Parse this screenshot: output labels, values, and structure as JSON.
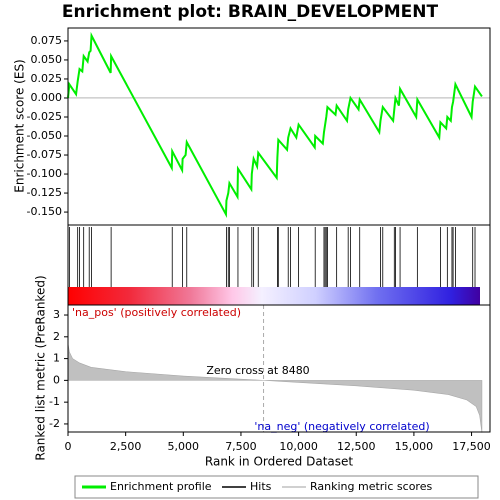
{
  "chart_data": {
    "type": "gsea",
    "title": "Enrichment plot: BRAIN_DEVELOPMENT",
    "y_label": "Enrichment score (ES)",
    "y2_label": "Ranked list metric (PreRanked)",
    "x_label": "Rank in Ordered Dataset",
    "annotations": [
      "'na_pos' (positively correlated)",
      "Zero cross at 8480",
      "'na_neg' (negatively correlated)"
    ],
    "zero_cross": 8480,
    "xlim": [
      0,
      18300
    ],
    "xticks": [
      0,
      {
        "value": 2500,
        "label": "2,500"
      },
      {
        "value": 5000,
        "label": "5,000"
      },
      {
        "value": 7500,
        "label": "7,500"
      },
      {
        "value": 10000,
        "label": "10,000"
      },
      {
        "value": 12500,
        "label": "12,500"
      },
      {
        "value": 15000,
        "label": "15,000"
      },
      {
        "value": 17500,
        "label": "17,500"
      }
    ],
    "ylim": [
      -0.167,
      0.092
    ],
    "yticks": [
      0.075,
      {
        "value": 0.05,
        "label": "0.050"
      },
      0.025,
      {
        "value": 0,
        "label": "0.000"
      },
      -0.025,
      {
        "value": -0.05,
        "label": "-0.050"
      },
      -0.075,
      {
        "value": -0.1,
        "label": "-0.100"
      },
      -0.125,
      {
        "value": -0.15,
        "label": "-0.150"
      }
    ],
    "y2lim": [
      -2.37,
      3.46
    ],
    "y2ticks": [
      3,
      2,
      1,
      0,
      -1,
      -2
    ],
    "series": [
      {
        "name": "Enrichment profile",
        "color": "#00ee00",
        "x": [
          0,
          60,
          350,
          420,
          500,
          620,
          680,
          850,
          920,
          980,
          1020,
          1850,
          1870,
          4500,
          4520,
          4950,
          4970,
          5100,
          5150,
          6850,
          6870,
          6950,
          7000,
          7350,
          7370,
          7950,
          7970,
          8050,
          8200,
          8250,
          9050,
          9080,
          9120,
          9500,
          9550,
          9650,
          9900,
          10000,
          10700,
          10720,
          11050,
          11100,
          11150,
          11200,
          11250,
          11600,
          11650,
          12100,
          12150,
          12250,
          12600,
          12650,
          13500,
          13550,
          13650,
          14100,
          14150,
          14200,
          14350,
          14400,
          15100,
          15150,
          16100,
          16150,
          16400,
          16450,
          16600,
          16650,
          16700,
          16800,
          17500,
          17550,
          17650,
          17950
        ],
        "values": [
          0,
          0.018,
          0.005,
          0.022,
          0.038,
          0.035,
          0.055,
          0.048,
          0.06,
          0.062,
          0.082,
          0.033,
          0.055,
          -0.092,
          -0.07,
          -0.095,
          -0.08,
          -0.075,
          -0.058,
          -0.153,
          -0.135,
          -0.125,
          -0.112,
          -0.13,
          -0.093,
          -0.12,
          -0.1,
          -0.08,
          -0.09,
          -0.072,
          -0.105,
          -0.078,
          -0.055,
          -0.068,
          -0.052,
          -0.04,
          -0.052,
          -0.035,
          -0.065,
          -0.05,
          -0.06,
          -0.045,
          -0.035,
          -0.025,
          -0.012,
          -0.022,
          -0.01,
          -0.03,
          -0.015,
          0,
          -0.015,
          -0.002,
          -0.045,
          -0.03,
          -0.012,
          -0.03,
          -0.015,
          0,
          -0.01,
          0.012,
          -0.025,
          -0.002,
          -0.052,
          -0.032,
          -0.04,
          -0.025,
          -0.03,
          -0.012,
          -0.005,
          0.018,
          -0.025,
          -0.005,
          0.015,
          0.002
        ]
      },
      {
        "name": "Hits",
        "color": "#000000",
        "x": [
          60,
          420,
          500,
          680,
          920,
          1020,
          1870,
          4520,
          4970,
          5150,
          6870,
          6950,
          7000,
          7370,
          7970,
          8050,
          8250,
          9080,
          9120,
          9550,
          9650,
          10000,
          10720,
          11100,
          11150,
          11200,
          11250,
          11650,
          12150,
          12250,
          12650,
          13550,
          13650,
          14150,
          14200,
          14400,
          15150,
          16150,
          16450,
          16650,
          16700,
          16800,
          17550,
          17650
        ]
      },
      {
        "name": "Ranking metric scores",
        "color": "#c0c0c0",
        "axis": "y2",
        "x": [
          0,
          60,
          200,
          500,
          1000,
          2500,
          5000,
          8480,
          12500,
          15000,
          16500,
          17300,
          17700,
          17850,
          17950
        ],
        "values": [
          1.7,
          1.3,
          1.0,
          0.8,
          0.6,
          0.4,
          0.2,
          0,
          -0.25,
          -0.45,
          -0.65,
          -0.9,
          -1.2,
          -1.6,
          -2.4
        ]
      }
    ]
  }
}
